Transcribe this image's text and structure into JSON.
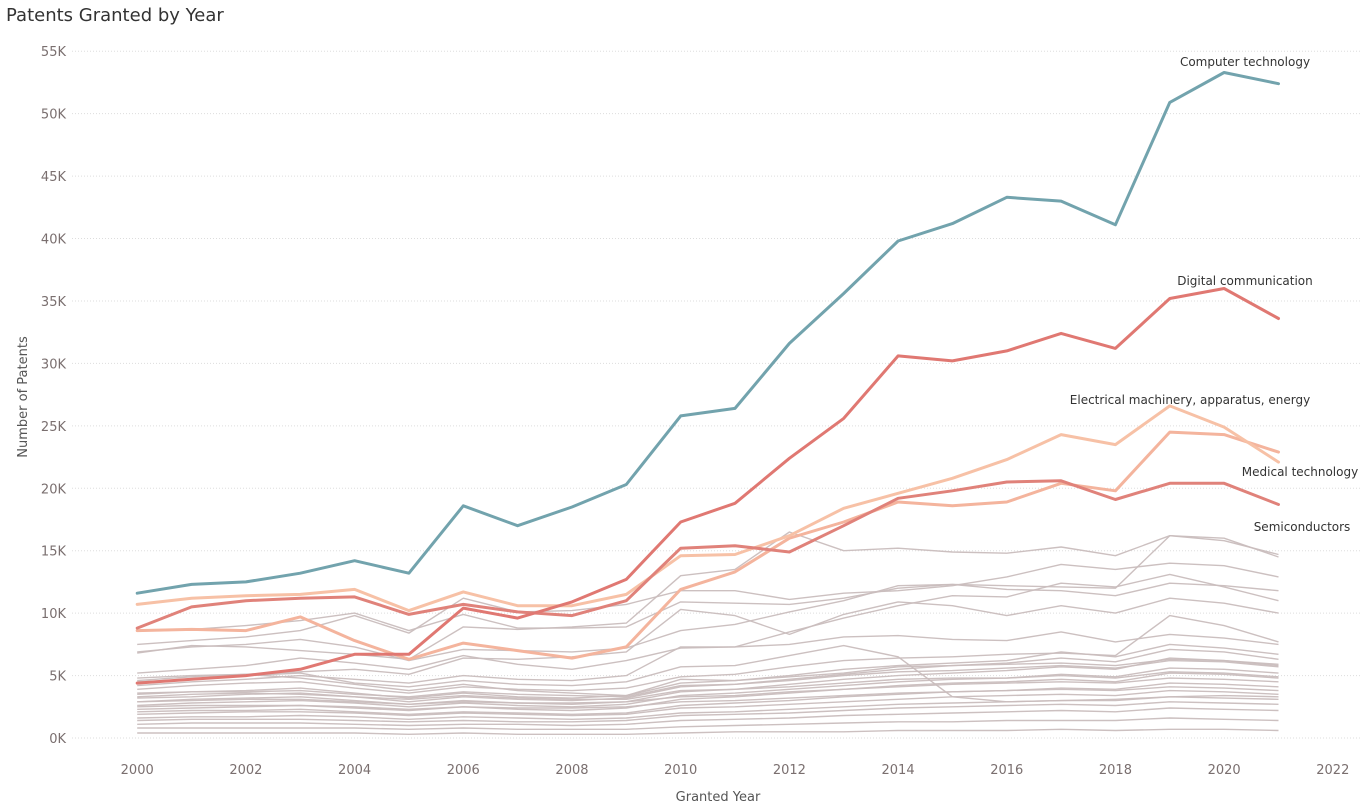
{
  "chart_data": {
    "type": "line",
    "title": "Patents Granted by Year",
    "xlabel": "Granted Year",
    "ylabel": "Number of Patents",
    "xlim": [
      1998.8,
      2022.5
    ],
    "ylim": [
      -800,
      55500
    ],
    "x_ticks": [
      2000,
      2002,
      2004,
      2006,
      2008,
      2010,
      2012,
      2014,
      2016,
      2018,
      2020,
      2022
    ],
    "x_tick_labels": [
      "2000",
      "2002",
      "2004",
      "2006",
      "2008",
      "2010",
      "2012",
      "2014",
      "2016",
      "2018",
      "2020",
      "2022"
    ],
    "y_ticks": [
      0,
      5000,
      10000,
      15000,
      20000,
      25000,
      30000,
      35000,
      40000,
      45000,
      50000,
      55000
    ],
    "y_tick_labels": [
      "0K",
      "5K",
      "10K",
      "15K",
      "20K",
      "25K",
      "30K",
      "35K",
      "40K",
      "45K",
      "50K",
      "55K"
    ],
    "grid": "horizontal dotted",
    "legend": "none",
    "x": [
      2000,
      2001,
      2002,
      2003,
      2004,
      2005,
      2006,
      2007,
      2008,
      2009,
      2010,
      2011,
      2012,
      2013,
      2014,
      2015,
      2016,
      2017,
      2018,
      2019,
      2020,
      2021
    ],
    "highlighted_series": [
      {
        "name": "Computer technology",
        "color": "#72a3ad",
        "values": [
          11600,
          12300,
          12500,
          13200,
          14200,
          13200,
          18600,
          17000,
          18500,
          20300,
          25800,
          26400,
          31600,
          35600,
          39800,
          41200,
          43300,
          43000,
          41100,
          50900,
          53300,
          52400
        ]
      },
      {
        "name": "Digital communication",
        "color": "#e0827a",
        "values": [
          8800,
          10500,
          11000,
          11200,
          11300,
          9900,
          10700,
          10100,
          9800,
          11000,
          15200,
          15400,
          14900,
          17000,
          19200,
          19800,
          20500,
          20600,
          19100,
          20400,
          20400,
          18700
        ]
      },
      {
        "name": "Electrical machinery, apparatus, energy",
        "color": "#f7c1a6",
        "values": [
          10700,
          11200,
          11400,
          11500,
          11900,
          10200,
          11700,
          10600,
          10600,
          11500,
          14600,
          14700,
          16200,
          18400,
          19600,
          20800,
          22300,
          24300,
          23500,
          26600,
          24900,
          22100
        ]
      },
      {
        "name": "Medical technology",
        "color": "#f4b49d",
        "values": [
          8600,
          8700,
          8600,
          9700,
          7800,
          6300,
          7600,
          7000,
          6400,
          7300,
          11900,
          13300,
          16000,
          17300,
          18900,
          18600,
          18900,
          20400,
          19800,
          24500,
          24300,
          22900
        ]
      },
      {
        "name": "Semiconductors",
        "color": "#e07872",
        "values": [
          4400,
          4700,
          5000,
          5500,
          6700,
          6700,
          10400,
          9600,
          10900,
          12700,
          17300,
          18800,
          22400,
          25600,
          30600,
          30200,
          31000,
          32400,
          31200,
          35200,
          36000,
          33600
        ]
      }
    ],
    "background_series_color": "#c9bdbd",
    "background_series": [
      [
        8600,
        8700,
        9000,
        9400,
        10000,
        8600,
        9900,
        8800,
        8800,
        8900,
        10900,
        10800,
        10700,
        11200,
        12000,
        12300,
        12200,
        12100,
        12000,
        16200,
        16000,
        14500
      ],
      [
        6800,
        7400,
        7300,
        7000,
        6700,
        6300,
        8900,
        8700,
        8900,
        9200,
        13000,
        13500,
        16500,
        15000,
        15200,
        14900,
        14800,
        15300,
        14600,
        16200,
        15800,
        14700
      ],
      [
        7500,
        7800,
        8100,
        8600,
        9800,
        8400,
        11200,
        10100,
        10200,
        10700,
        11800,
        11800,
        11100,
        11600,
        11800,
        12200,
        12900,
        13900,
        13500,
        14000,
        13800,
        12900
      ],
      [
        5200,
        5500,
        5800,
        6400,
        6000,
        5500,
        6600,
        5900,
        5500,
        6200,
        7200,
        7300,
        7500,
        8100,
        8200,
        7900,
        7800,
        8500,
        7700,
        8300,
        8000,
        7500
      ],
      [
        4600,
        4900,
        5100,
        5300,
        5500,
        5100,
        6400,
        6300,
        6500,
        6900,
        10300,
        9800,
        8300,
        9900,
        10900,
        10600,
        9800,
        10600,
        10000,
        11200,
        10800,
        10000
      ],
      [
        4200,
        4500,
        4700,
        5000,
        4700,
        4400,
        5000,
        4700,
        4600,
        5000,
        7300,
        7300,
        8500,
        9600,
        10600,
        11400,
        11300,
        12400,
        12100,
        13100,
        12100,
        11000
      ],
      [
        6900,
        7300,
        7500,
        7900,
        7300,
        6200,
        7100,
        7000,
        6900,
        7200,
        8600,
        9100,
        10100,
        11000,
        12200,
        12300,
        11900,
        11800,
        11400,
        12400,
        12200,
        11800
      ],
      [
        4500,
        4700,
        5000,
        5200,
        4400,
        4100,
        4600,
        4300,
        4200,
        4500,
        5700,
        5800,
        6600,
        7400,
        6500,
        3300,
        2900,
        3000,
        3100,
        3300,
        3400,
        3300
      ],
      [
        3900,
        4200,
        4400,
        4500,
        4000,
        3600,
        4100,
        3900,
        3800,
        4000,
        4900,
        5100,
        5700,
        6200,
        6400,
        6500,
        6700,
        6800,
        6600,
        9800,
        9000,
        7700
      ],
      [
        3500,
        3700,
        3800,
        4000,
        3600,
        3200,
        3600,
        3300,
        3200,
        3400,
        4400,
        4600,
        5000,
        5500,
        5800,
        6000,
        6200,
        6900,
        6500,
        7500,
        7200,
        6700
      ],
      [
        3200,
        3300,
        3500,
        3600,
        3300,
        2900,
        3300,
        3100,
        3000,
        3200,
        4100,
        4300,
        4700,
        5100,
        5500,
        5800,
        6000,
        6400,
        6100,
        7100,
        6900,
        6300
      ],
      [
        2900,
        3100,
        3200,
        3300,
        3000,
        2700,
        3000,
        2800,
        2700,
        2900,
        3700,
        3900,
        4300,
        4700,
        5000,
        5200,
        5400,
        5700,
        5500,
        6400,
        6200,
        5800
      ],
      [
        3600,
        3700,
        3700,
        3800,
        3500,
        3300,
        3700,
        3500,
        3400,
        3300,
        4200,
        4300,
        4600,
        5000,
        5300,
        5400,
        5600,
        5800,
        5600,
        6200,
        6100,
        5700
      ],
      [
        2600,
        2800,
        2900,
        3000,
        2800,
        2500,
        2800,
        2600,
        2500,
        2700,
        3400,
        3600,
        3900,
        4200,
        4500,
        4700,
        4800,
        5100,
        4900,
        5600,
        5500,
        5200
      ],
      [
        2300,
        2400,
        2500,
        2600,
        2400,
        2200,
        2500,
        2300,
        2200,
        2400,
        3100,
        3300,
        3600,
        3900,
        4200,
        4400,
        4500,
        4700,
        4500,
        5200,
        5100,
        4800
      ],
      [
        2900,
        3000,
        3100,
        3100,
        2900,
        2700,
        2900,
        2800,
        2800,
        2900,
        3300,
        3400,
        3700,
        3900,
        4100,
        4300,
        4400,
        4500,
        4400,
        4800,
        4700,
        4500
      ],
      [
        2100,
        2200,
        2200,
        2300,
        2100,
        1900,
        2100,
        2000,
        1900,
        2000,
        2600,
        2800,
        3000,
        3300,
        3500,
        3700,
        3800,
        4000,
        3900,
        4400,
        4300,
        4100
      ],
      [
        1900,
        2000,
        2100,
        2100,
        2000,
        1800,
        2000,
        1900,
        1800,
        1900,
        2400,
        2500,
        2700,
        2900,
        3100,
        3300,
        3400,
        3500,
        3400,
        3800,
        3700,
        3500
      ],
      [
        2500,
        2600,
        2600,
        2600,
        2500,
        2300,
        2500,
        2400,
        2400,
        2500,
        2900,
        3000,
        3200,
        3400,
        3600,
        3700,
        3800,
        3900,
        3800,
        4100,
        4000,
        3800
      ],
      [
        1600,
        1700,
        1700,
        1800,
        1700,
        1500,
        1700,
        1600,
        1500,
        1600,
        2000,
        2100,
        2300,
        2500,
        2700,
        2800,
        2900,
        3000,
        3000,
        3300,
        3200,
        3100
      ],
      [
        1400,
        1500,
        1500,
        1500,
        1400,
        1300,
        1400,
        1300,
        1300,
        1400,
        1800,
        1900,
        2000,
        2200,
        2400,
        2500,
        2600,
        2700,
        2600,
        2900,
        2800,
        2700
      ],
      [
        1100,
        1200,
        1200,
        1200,
        1100,
        1000,
        1100,
        1100,
        1000,
        1100,
        1400,
        1500,
        1600,
        1800,
        1900,
        2000,
        2100,
        2200,
        2100,
        2400,
        2300,
        2200
      ],
      [
        800,
        800,
        800,
        800,
        800,
        700,
        800,
        700,
        700,
        700,
        900,
        1000,
        1100,
        1200,
        1300,
        1300,
        1400,
        1400,
        1400,
        1600,
        1500,
        1400
      ],
      [
        400,
        400,
        400,
        400,
        400,
        300,
        400,
        300,
        300,
        300,
        400,
        500,
        500,
        500,
        600,
        600,
        600,
        700,
        600,
        700,
        700,
        600
      ],
      [
        3300,
        3500,
        3600,
        3500,
        3300,
        3100,
        3400,
        3200,
        3100,
        3100,
        3800,
        3900,
        4100,
        4400,
        4700,
        4800,
        4800,
        5000,
        4800,
        5300,
        5200,
        4900
      ],
      [
        4800,
        5000,
        5100,
        4800,
        4300,
        3800,
        4300,
        3800,
        3600,
        3400,
        4700,
        4600,
        4900,
        5200,
        5700,
        5800,
        5900,
        6000,
        5800,
        6300,
        6200,
        5900
      ]
    ]
  }
}
